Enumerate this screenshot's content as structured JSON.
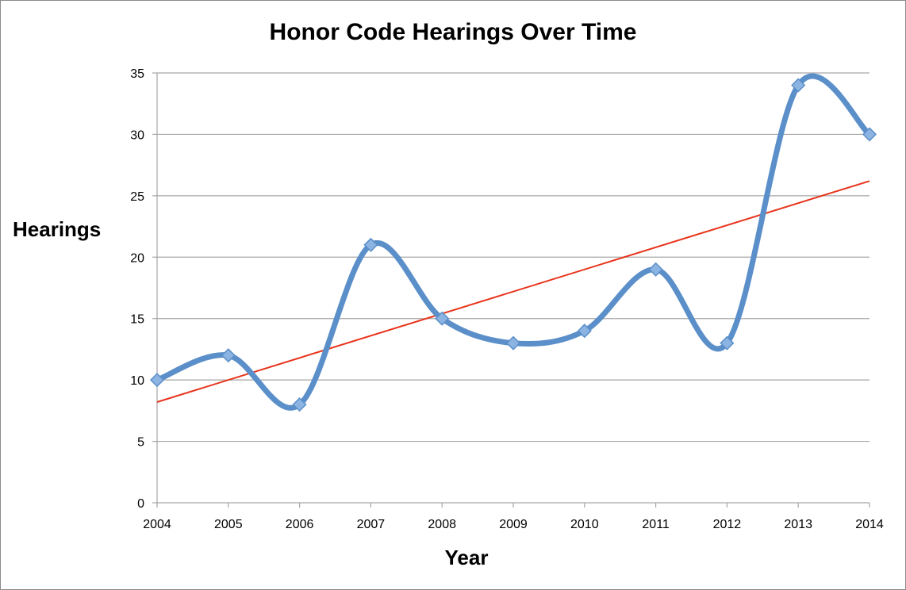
{
  "chart_data": {
    "type": "line",
    "title": "Honor Code Hearings Over Time",
    "xlabel": "Year",
    "ylabel": "Hearings",
    "x": [
      2004,
      2005,
      2006,
      2007,
      2008,
      2009,
      2010,
      2011,
      2012,
      2013,
      2014
    ],
    "series": [
      {
        "values": [
          10,
          12,
          8,
          21,
          15,
          13,
          14,
          19,
          13,
          34,
          30
        ],
        "color": "#5b8fc9",
        "marker": "diamond",
        "smooth": true
      }
    ],
    "trendline": {
      "type": "linear",
      "start": [
        2004,
        8.2
      ],
      "end": [
        2014,
        26.2
      ],
      "color": "#e8341c"
    },
    "xlim": [
      2004,
      2014
    ],
    "ylim": [
      0,
      35
    ],
    "y_ticks": [
      0,
      5,
      10,
      15,
      20,
      25,
      30,
      35
    ],
    "grid": true,
    "gridline_color": "#a6a6a6",
    "legend": "none"
  }
}
